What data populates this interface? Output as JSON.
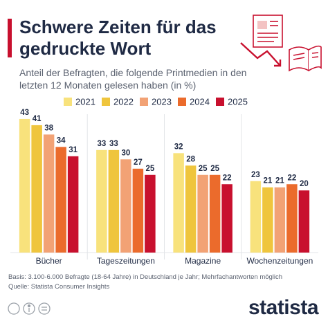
{
  "chart_data": {
    "type": "bar",
    "title": "Schwere Zeiten für das gedruckte Wort",
    "subtitle": "Anteil der Befragten, die folgende Printmedien in den letzten 12 Monaten gelesen haben (in %)",
    "categories": [
      "Bücher",
      "Tageszeitungen",
      "Magazine",
      "Wochenzeitungen"
    ],
    "series": [
      {
        "name": "2021",
        "color": "#f8e27c",
        "values": [
          43,
          33,
          32,
          23
        ]
      },
      {
        "name": "2022",
        "color": "#efc53d",
        "values": [
          41,
          33,
          28,
          21
        ]
      },
      {
        "name": "2023",
        "color": "#f2a275",
        "values": [
          38,
          30,
          25,
          21
        ]
      },
      {
        "name": "2024",
        "color": "#eb6b2c",
        "values": [
          34,
          27,
          25,
          22
        ]
      },
      {
        "name": "2025",
        "color": "#c8102e",
        "values": [
          31,
          25,
          22,
          20
        ]
      }
    ],
    "note": "Basis: 3.100-6.000 Befragte (18-64 Jahre) in Deutschland je Jahr; Mehrfachantworten möglich",
    "source": "Quelle: Statista Consumer Insights",
    "brand": "statista"
  }
}
